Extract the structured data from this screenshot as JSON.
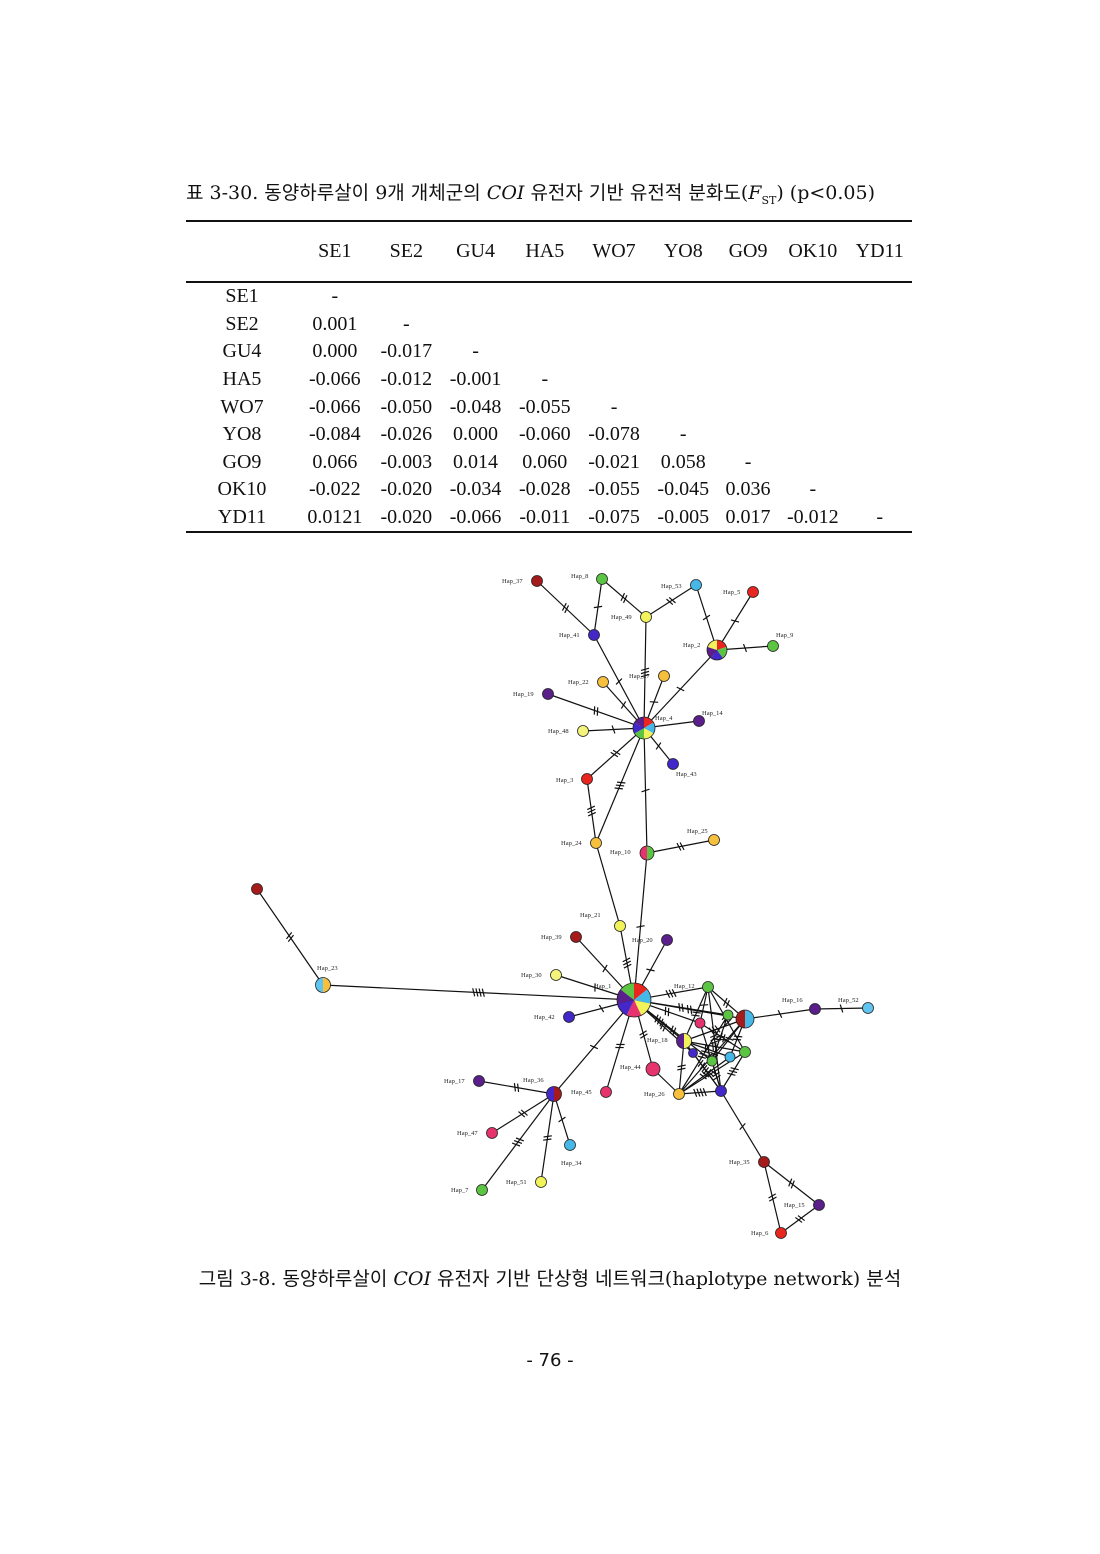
{
  "table_caption": {
    "prefix": "표 3-30. 동양하루살이 9개 개체군의 ",
    "gene": "COI",
    "middle": " 유전자 기반 유전적 분화도(",
    "stat": "F",
    "stat_sub": "ST",
    "suffix": ") (p<0.05)"
  },
  "table": {
    "columns": [
      "SE1",
      "SE2",
      "GU4",
      "HA5",
      "WO7",
      "YO8",
      "GO9",
      "OK10",
      "YD11"
    ],
    "rows": [
      {
        "label": "SE1",
        "cells": [
          "-",
          "",
          "",
          "",
          "",
          "",
          "",
          "",
          ""
        ]
      },
      {
        "label": "SE2",
        "cells": [
          "0.001",
          "-",
          "",
          "",
          "",
          "",
          "",
          "",
          ""
        ]
      },
      {
        "label": "GU4",
        "cells": [
          "0.000",
          "-0.017",
          "-",
          "",
          "",
          "",
          "",
          "",
          ""
        ]
      },
      {
        "label": "HA5",
        "cells": [
          "-0.066",
          "-0.012",
          "-0.001",
          "-",
          "",
          "",
          "",
          "",
          ""
        ]
      },
      {
        "label": "WO7",
        "cells": [
          "-0.066",
          "-0.050",
          "-0.048",
          "-0.055",
          "-",
          "",
          "",
          "",
          ""
        ]
      },
      {
        "label": "YO8",
        "cells": [
          "-0.084",
          "-0.026",
          "0.000",
          "-0.060",
          "-0.078",
          "-",
          "",
          "",
          ""
        ]
      },
      {
        "label": "GO9",
        "cells": [
          "0.066",
          "-0.003",
          "0.014",
          "0.060",
          "-0.021",
          "0.058",
          "-",
          "",
          ""
        ]
      },
      {
        "label": "OK10",
        "cells": [
          "-0.022",
          "-0.020",
          "-0.034",
          "-0.028",
          "-0.055",
          "-0.045",
          "0.036",
          "-",
          ""
        ]
      },
      {
        "label": "YD11",
        "cells": [
          "0.0121",
          "-0.020",
          "-0.066",
          "-0.011",
          "-0.075",
          "-0.005",
          "0.017",
          "-0.012",
          "-"
        ]
      }
    ]
  },
  "network": {
    "colors": {
      "red": "#e8261f",
      "darkred": "#a51a1a",
      "green": "#5cc443",
      "yellow": "#f2f25a",
      "cyan": "#45b8e8",
      "purple": "#5a1f8a",
      "blue": "#4327c9",
      "orange": "#f6bf3c",
      "pink": "#e6336e",
      "lightyellow": "#f4f47a",
      "skyblue": "#5fc4f0"
    },
    "nodes": [
      {
        "id": "Hap_37",
        "label": "Hap_37"
      },
      {
        "id": "Hap_8",
        "label": "Hap_8"
      },
      {
        "id": "Hap_53",
        "label": "Hap_53"
      },
      {
        "id": "Hap_5",
        "label": "Hap_5"
      },
      {
        "id": "Hap_49",
        "label": "Hap_49"
      },
      {
        "id": "Hap_41",
        "label": "Hap_41"
      },
      {
        "id": "Hap_2",
        "label": "Hap_2"
      },
      {
        "id": "Hap_9",
        "label": "Hap_9"
      },
      {
        "id": "Hap_22",
        "label": "Hap_22"
      },
      {
        "id": "Hap_27",
        "label": "Hap_27"
      },
      {
        "id": "Hap_19",
        "label": "Hap_19"
      },
      {
        "id": "Hap_4",
        "label": "Hap_4"
      },
      {
        "id": "Hap_14",
        "label": "Hap_14"
      },
      {
        "id": "Hap_48",
        "label": "Hap_48"
      },
      {
        "id": "Hap_43",
        "label": "Hap_43"
      },
      {
        "id": "Hap_3",
        "label": "Hap_3"
      },
      {
        "id": "Hap_25",
        "label": "Hap_25"
      },
      {
        "id": "Hap_24",
        "label": "Hap_24"
      },
      {
        "id": "Hap_10",
        "label": "Hap_10"
      },
      {
        "id": "Hap_29",
        "label": ""
      },
      {
        "id": "Hap_23",
        "label": "Hap_23"
      },
      {
        "id": "Hap_21",
        "label": "Hap_21"
      },
      {
        "id": "Hap_39",
        "label": "Hap_39"
      },
      {
        "id": "Hap_20",
        "label": "Hap_20"
      },
      {
        "id": "Hap_30",
        "label": "Hap_30"
      },
      {
        "id": "Hap_1",
        "label": "Hap_1"
      },
      {
        "id": "Hap_12",
        "label": "Hap_12"
      },
      {
        "id": "Hap_16",
        "label": "Hap_16"
      },
      {
        "id": "Hap_52",
        "label": "Hap_52"
      },
      {
        "id": "Hap_42",
        "label": "Hap_42"
      },
      {
        "id": "Hap_18",
        "label": "Hap_18"
      },
      {
        "id": "Hap_44",
        "label": "Hap_44"
      },
      {
        "id": "Hap_17",
        "label": "Hap_17"
      },
      {
        "id": "Hap_36",
        "label": "Hap_36"
      },
      {
        "id": "Hap_45",
        "label": "Hap_45"
      },
      {
        "id": "Hap_26",
        "label": "Hap_26"
      },
      {
        "id": "Hap_47",
        "label": "Hap_47"
      },
      {
        "id": "Hap_34",
        "label": "Hap_34"
      },
      {
        "id": "Hap_35",
        "label": "Hap_35"
      },
      {
        "id": "Hap_51",
        "label": "Hap_51"
      },
      {
        "id": "Hap_7",
        "label": "Hap_7"
      },
      {
        "id": "Hap_15",
        "label": "Hap_15"
      },
      {
        "id": "Hap_6",
        "label": "Hap_6"
      }
    ]
  },
  "figure_caption": {
    "prefix": "그림 3-8. 동양하루살이 ",
    "gene": "COI",
    "suffix": " 유전자 기반 단상형 네트워크(haplotype network) 분석"
  },
  "page_number": "- 76 -"
}
